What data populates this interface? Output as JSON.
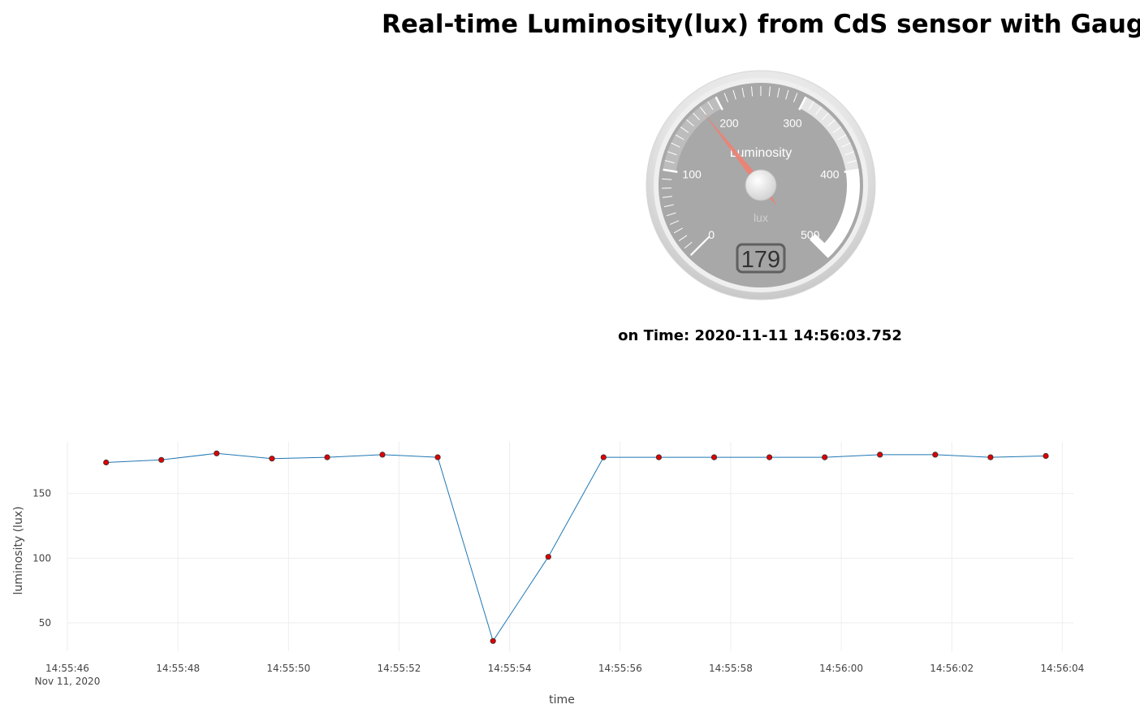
{
  "header": {
    "title": "Real-time Luminosity(lux) from CdS sensor with Gauge"
  },
  "gauge": {
    "title": "Luminosity",
    "units": "lux",
    "min": 0,
    "max": 500,
    "major_ticks": [
      "0",
      "100",
      "200",
      "300",
      "400",
      "500"
    ],
    "value": 179,
    "value_text": "179",
    "colors": {
      "face": "#a8a8a8",
      "needle": "#f08070",
      "highlight": "#ffffff",
      "value_box": "#8a8a8a"
    }
  },
  "status": {
    "time_label": "on Time: 2020-11-11 14:56:03.752"
  },
  "chart_data": {
    "type": "line",
    "xlabel": "time",
    "ylabel": "luminosity (lux)",
    "date_label": "Nov 11, 2020",
    "x_ticks": [
      "14:55:46",
      "14:55:48",
      "14:55:50",
      "14:55:52",
      "14:55:54",
      "14:55:56",
      "14:55:58",
      "14:56:00",
      "14:56:02",
      "14:56:04"
    ],
    "y_ticks": [
      50,
      100,
      150
    ],
    "xlim": [
      "14:55:46.0",
      "14:56:04.2"
    ],
    "ylim": [
      28,
      190
    ],
    "grid": true,
    "marker_color": "#e00000",
    "line_color": "#1f77b4",
    "series": [
      {
        "x": [
          "14:55:46.7",
          "14:55:47.7",
          "14:55:48.7",
          "14:55:49.7",
          "14:55:50.7",
          "14:55:51.7",
          "14:55:52.7",
          "14:55:53.7",
          "14:55:54.7",
          "14:55:55.7",
          "14:55:56.7",
          "14:55:57.7",
          "14:55:58.7",
          "14:55:59.7",
          "14:56:00.7",
          "14:56:01.7",
          "14:56:02.7",
          "14:56:03.7"
        ],
        "values": [
          174,
          176,
          181,
          177,
          178,
          180,
          178,
          36,
          101,
          178,
          178,
          178,
          178,
          178,
          180,
          180,
          178,
          179
        ]
      }
    ]
  }
}
